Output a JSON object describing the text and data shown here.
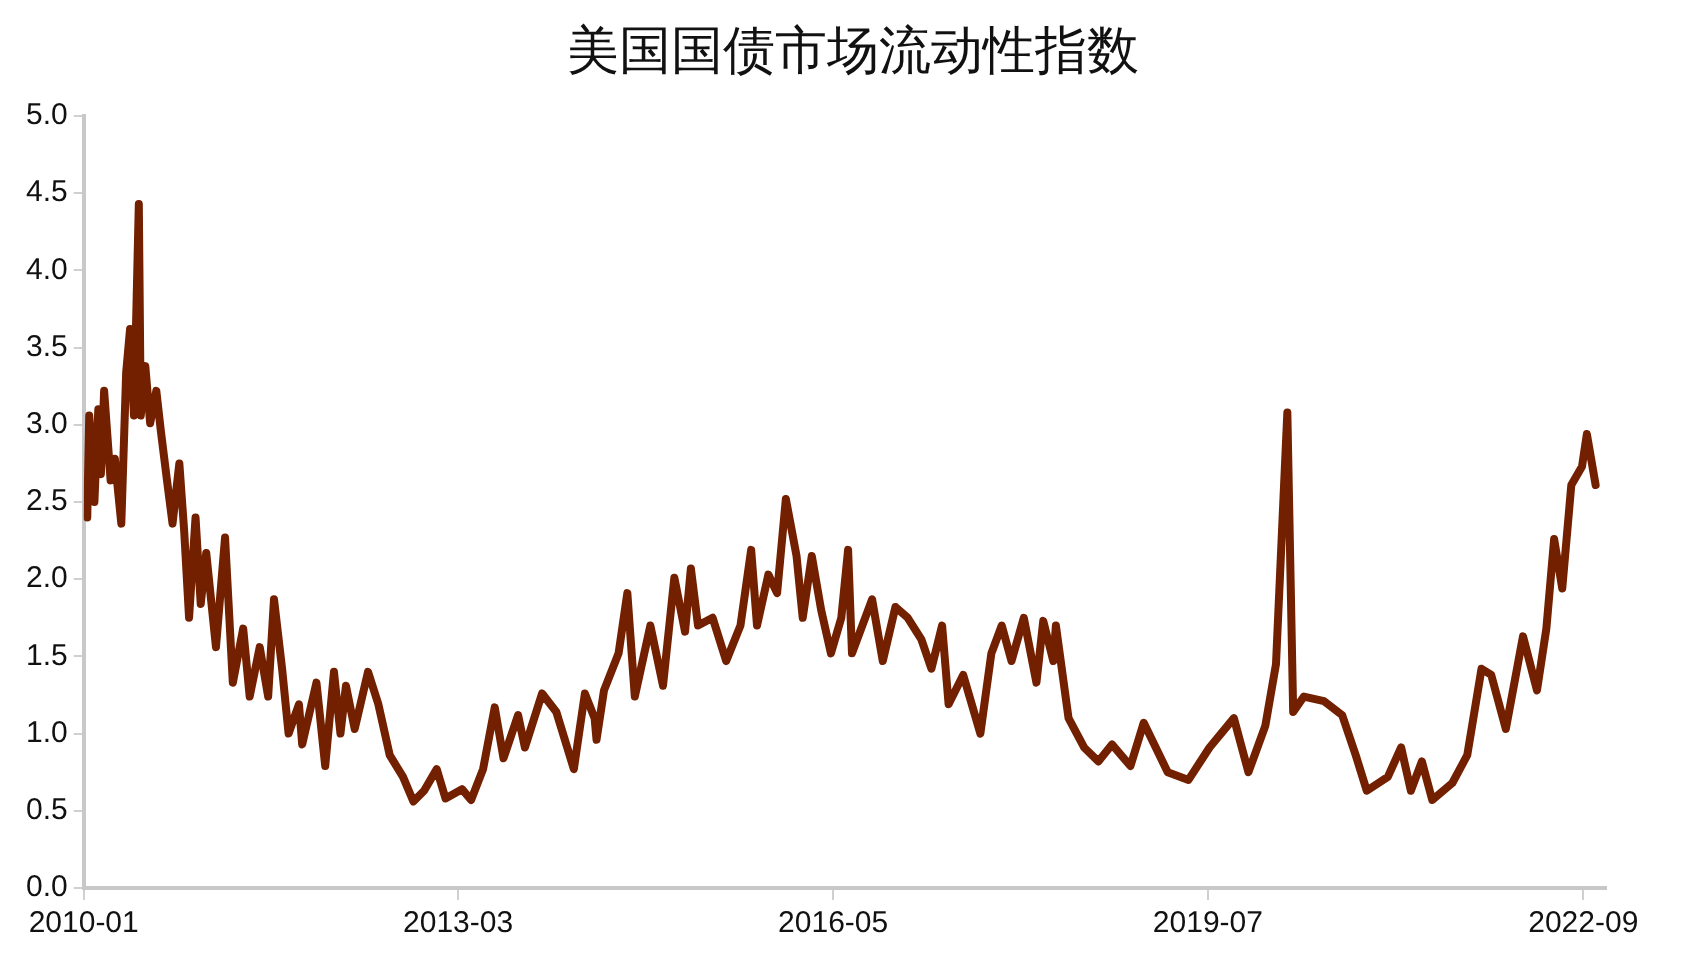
{
  "chart_data": {
    "type": "line",
    "title": "美国国债市场流动性指数",
    "x": [
      "2010-01-12",
      "2010-01-18",
      "2010-02-03",
      "2010-02-15",
      "2010-02-23",
      "2010-03-05",
      "2010-03-25",
      "2010-04-07",
      "2010-04-27",
      "2010-05-12",
      "2010-05-24",
      "2010-06-05",
      "2010-06-20",
      "2010-06-26",
      "2010-07-10",
      "2010-07-25",
      "2010-08-13",
      "2010-08-27",
      "2010-09-15",
      "2010-10-02",
      "2010-10-23",
      "2010-11-07",
      "2010-11-22",
      "2010-12-12",
      "2010-12-28",
      "2011-01-14",
      "2011-02-13",
      "2011-03-13",
      "2011-04-06",
      "2011-05-08",
      "2011-05-28",
      "2011-06-28",
      "2011-07-24",
      "2011-08-11",
      "2011-09-05",
      "2011-09-25",
      "2011-10-27",
      "2011-11-06",
      "2011-12-20",
      "2012-01-16",
      "2012-02-12",
      "2012-03-03",
      "2012-03-20",
      "2012-04-16",
      "2012-05-27",
      "2012-06-28",
      "2012-08-02",
      "2012-09-12",
      "2012-10-14",
      "2012-11-16",
      "2012-12-25",
      "2013-01-21",
      "2013-03-13",
      "2013-04-10",
      "2013-05-17",
      "2013-06-22",
      "2013-07-19",
      "2013-09-02",
      "2013-09-23",
      "2013-11-15",
      "2013-12-29",
      "2014-02-21",
      "2014-03-27",
      "2014-04-26",
      "2014-05-02",
      "2014-05-25",
      "2014-07-09",
      "2014-08-05",
      "2014-08-28",
      "2014-10-15",
      "2014-11-23",
      "2014-12-28",
      "2015-01-30",
      "2015-02-17",
      "2015-03-11",
      "2015-04-25",
      "2015-06-06",
      "2015-07-20",
      "2015-08-22",
      "2015-09-09",
      "2015-10-14",
      "2015-11-10",
      "2015-12-07",
      "2016-01-09",
      "2016-01-28",
      "2016-02-25",
      "2016-03-25",
      "2016-04-24",
      "2016-05-26",
      "2016-06-16",
      "2016-06-28",
      "2016-08-29",
      "2016-10-01",
      "2016-11-09",
      "2016-12-17",
      "2017-01-28",
      "2017-02-28",
      "2017-04-02",
      "2017-04-22",
      "2017-06-06",
      "2017-07-29",
      "2017-09-01",
      "2017-10-03",
      "2017-11-02",
      "2017-12-10",
      "2018-01-18",
      "2018-02-08",
      "2018-03-11",
      "2018-03-19",
      "2018-04-27",
      "2018-06-14",
      "2018-07-28",
      "2018-09-08",
      "2018-11-04",
      "2018-12-15",
      "2019-02-27",
      "2019-05-02",
      "2019-07-06",
      "2019-09-19",
      "2019-11-03",
      "2019-12-25",
      "2020-01-27",
      "2020-03-02",
      "2020-03-20",
      "2020-04-22",
      "2020-06-23",
      "2020-08-18",
      "2020-09-29",
      "2020-11-02",
      "2021-01-06",
      "2021-02-16",
      "2021-03-18",
      "2021-04-21",
      "2021-05-23",
      "2021-07-24",
      "2021-09-08",
      "2021-10-22",
      "2021-11-21",
      "2022-01-05",
      "2022-02-27",
      "2022-04-11",
      "2022-05-10",
      "2022-06-03",
      "2022-06-28",
      "2022-07-26",
      "2022-08-28",
      "2022-09-12",
      "2022-10-09"
    ],
    "series": [
      {
        "color": "#722000",
        "values": [
          2.4,
          3.06,
          2.5,
          3.1,
          2.68,
          3.22,
          2.64,
          2.78,
          2.36,
          3.34,
          3.62,
          3.06,
          4.43,
          3.06,
          3.38,
          3.01,
          3.22,
          2.96,
          2.64,
          2.36,
          2.75,
          2.31,
          1.75,
          2.4,
          1.84,
          2.17,
          1.56,
          2.27,
          1.33,
          1.68,
          1.24,
          1.56,
          1.24,
          1.87,
          1.42,
          1.0,
          1.19,
          0.93,
          1.33,
          0.79,
          1.4,
          1.0,
          1.31,
          1.03,
          1.4,
          1.19,
          0.86,
          0.72,
          0.56,
          0.63,
          0.77,
          0.58,
          0.64,
          0.57,
          0.77,
          1.17,
          0.84,
          1.12,
          0.91,
          1.26,
          1.14,
          0.77,
          1.26,
          1.1,
          0.96,
          1.28,
          1.52,
          1.91,
          1.24,
          1.7,
          1.31,
          2.01,
          1.66,
          2.07,
          1.7,
          1.75,
          1.47,
          1.7,
          2.19,
          1.7,
          2.03,
          1.91,
          2.52,
          2.15,
          1.75,
          2.15,
          1.8,
          1.52,
          1.75,
          2.19,
          1.52,
          1.87,
          1.47,
          1.82,
          1.75,
          1.61,
          1.42,
          1.7,
          1.19,
          1.38,
          1.0,
          1.52,
          1.7,
          1.47,
          1.75,
          1.33,
          1.73,
          1.47,
          1.7,
          1.1,
          0.91,
          0.82,
          0.93,
          0.79,
          1.07,
          0.75,
          0.7,
          0.91,
          1.1,
          0.75,
          1.05,
          1.45,
          3.08,
          1.14,
          1.24,
          1.21,
          1.12,
          0.86,
          0.63,
          0.72,
          0.91,
          0.63,
          0.82,
          0.57,
          0.68,
          0.86,
          1.42,
          1.38,
          1.03,
          1.63,
          1.28,
          1.68,
          2.26,
          1.94,
          2.61,
          2.73,
          2.94,
          2.61
        ]
      }
    ],
    "xlim": [
      "2010-01",
      "2022-11-10"
    ],
    "xticks": [
      "2010-01",
      "2013-03",
      "2016-05",
      "2019-07",
      "2022-09"
    ],
    "ylim": [
      0,
      5
    ],
    "yticks": [
      {
        "value": 0,
        "label": "0.0"
      },
      {
        "value": 0.5,
        "label": "0.5"
      },
      {
        "value": 1,
        "label": "1.0"
      },
      {
        "value": 1.5,
        "label": "1.5"
      },
      {
        "value": 2,
        "label": "2.0"
      },
      {
        "value": 2.5,
        "label": "2.5"
      },
      {
        "value": 3,
        "label": "3.0"
      },
      {
        "value": 3.5,
        "label": "3.5"
      },
      {
        "value": 4,
        "label": "4.0"
      },
      {
        "value": 4.5,
        "label": "4.5"
      },
      {
        "value": 5,
        "label": "5.0"
      }
    ],
    "grid": false,
    "legend": false,
    "marker": "none",
    "line_style": "solid"
  }
}
